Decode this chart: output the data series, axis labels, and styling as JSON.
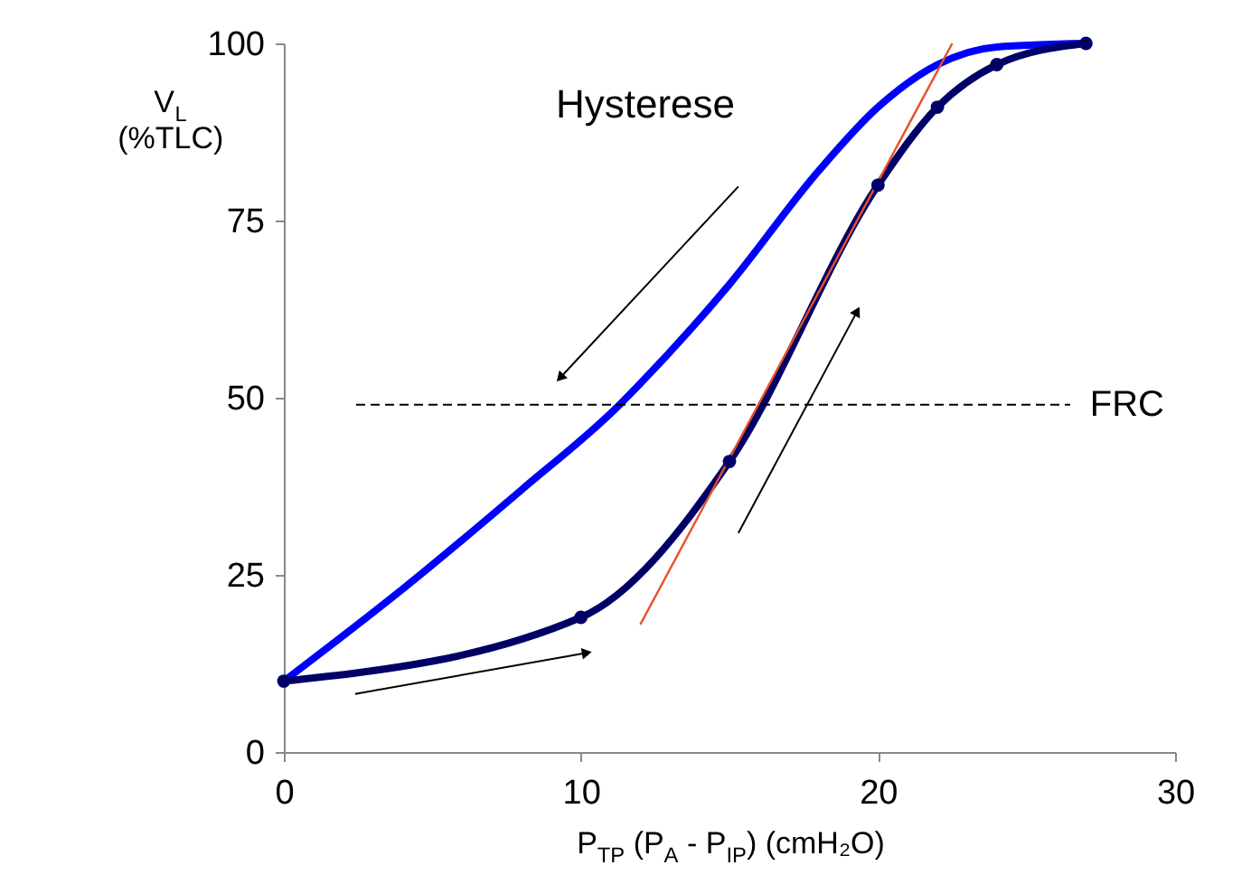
{
  "chart_data": {
    "type": "line",
    "xlabel": "P$_{TP}$ (P$_{A}$ - P$_{IP}$) (cmH₂O)",
    "ylabel": "V$_{L}$\n(%TLC)",
    "xlim": [
      0,
      30
    ],
    "xticks": [
      0,
      10,
      20,
      30
    ],
    "ylim": [
      0,
      100
    ],
    "yticks": [
      0,
      25,
      50,
      75,
      100
    ],
    "grid": false,
    "series": [
      {
        "color": "#0000ff",
        "marker": "none",
        "x": [
          27,
          24,
          22,
          20,
          18,
          15,
          12,
          11.3,
          8,
          4,
          0
        ],
        "values": [
          100,
          99.5,
          97,
          91,
          82,
          66,
          52,
          49,
          37,
          23,
          10
        ]
      },
      {
        "color": "#000066",
        "marker": "circle",
        "x": [
          0,
          10,
          15,
          20,
          22,
          24,
          27
        ],
        "values": [
          10,
          19,
          41,
          80,
          91,
          97,
          100
        ]
      },
      {
        "color": "#e8502a",
        "marker": "none",
        "x": [
          12,
          22.5
        ],
        "values": [
          18,
          100
        ]
      }
    ],
    "ref_lines": [
      {
        "axis": "y",
        "value": 49,
        "label": "FRC",
        "color": "#000000",
        "line_style": "dashed"
      }
    ],
    "annotations": [
      "Hysterese"
    ]
  }
}
